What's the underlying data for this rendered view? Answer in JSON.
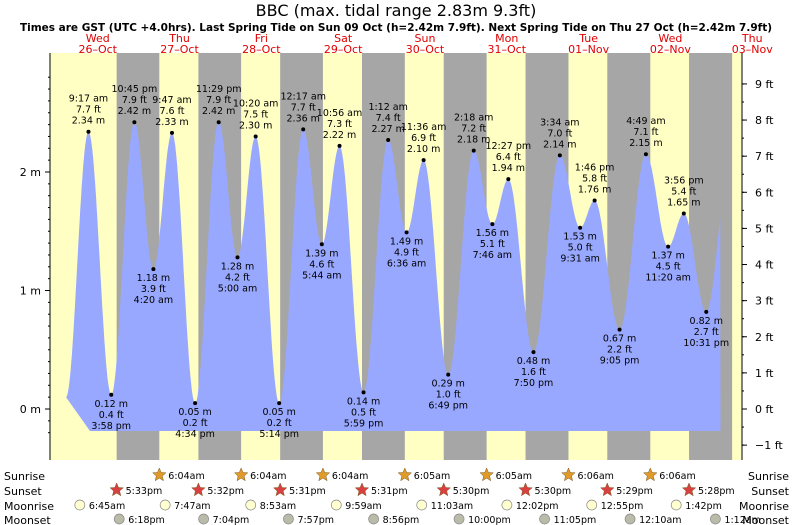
{
  "title": "BBC (max. tidal range 2.83m 9.3ft)",
  "subtitle": "Times are GST (UTC +4.0hrs). Last Spring Tide on Sun 09 Oct (h=2.42m 7.9ft). Next Spring Tide on Thu 27 Oct (h=2.42m 7.9ft)",
  "colors": {
    "day": "#ffffc4",
    "night": "#a6a6a6",
    "water": "#99a8ff",
    "day_label": "#e00000",
    "sun": "#e09a2a",
    "sunset": "#d94040",
    "moon": "#ffffd0",
    "moonset": "#bbbbaa"
  },
  "chart_data": {
    "type": "area",
    "title": "BBC (max. tidal range 2.83m 9.3ft)",
    "x_axis": {
      "type": "time",
      "start": "2022-10-25 22:00",
      "end": "2022-11-03 09:00"
    },
    "days": [
      {
        "weekday": "Wed",
        "date": "26–Oct"
      },
      {
        "weekday": "Thu",
        "date": "27–Oct"
      },
      {
        "weekday": "Fri",
        "date": "28–Oct"
      },
      {
        "weekday": "Sat",
        "date": "29–Oct"
      },
      {
        "weekday": "Sun",
        "date": "30–Oct"
      },
      {
        "weekday": "Mon",
        "date": "31–Oct"
      },
      {
        "weekday": "Tue",
        "date": "01–Nov"
      },
      {
        "weekday": "Wed",
        "date": "02–Nov"
      },
      {
        "weekday": "Thu",
        "date": "03–Nov"
      }
    ],
    "y_left": {
      "unit": "m",
      "range": [
        -0.3,
        3.0
      ],
      "ticks": [
        "0 m",
        "1 m",
        "2 m"
      ],
      "tick_values": [
        0,
        1,
        2
      ]
    },
    "y_right": {
      "unit": "ft",
      "ticks": [
        "−1 ft",
        "0 ft",
        "1 ft",
        "2 ft",
        "3 ft",
        "4 ft",
        "5 ft",
        "6 ft",
        "7 ft",
        "8 ft",
        "9 ft"
      ],
      "tick_values": [
        -1,
        0,
        1,
        2,
        3,
        4,
        5,
        6,
        7,
        8,
        9
      ]
    },
    "tides": [
      {
        "t": "2022-10-26 09:17",
        "time": "9:17 am",
        "h": 2.34,
        "m": "2.34 m",
        "ft": "7.7 ft",
        "type": "high"
      },
      {
        "t": "2022-10-26 15:58",
        "time": "3:58 pm",
        "h": 0.12,
        "m": "0.12 m",
        "ft": "0.4 ft",
        "type": "low"
      },
      {
        "t": "2022-10-26 22:45",
        "time": "10:45 pm",
        "h": 2.42,
        "m": "2.42 m",
        "ft": "7.9 ft",
        "type": "high"
      },
      {
        "t": "2022-10-27 04:20",
        "time": "4:20 am",
        "h": 1.18,
        "m": "1.18 m",
        "ft": "3.9 ft",
        "type": "low"
      },
      {
        "t": "2022-10-27 09:47",
        "time": "9:47 am",
        "h": 2.33,
        "m": "2.33 m",
        "ft": "7.6 ft",
        "type": "high"
      },
      {
        "t": "2022-10-27 16:34",
        "time": "4:34 pm",
        "h": 0.05,
        "m": "0.05 m",
        "ft": "0.2 ft",
        "type": "low"
      },
      {
        "t": "2022-10-27 23:29",
        "time": "11:29 pm",
        "h": 2.42,
        "m": "2.42 m",
        "ft": "7.9 ft",
        "type": "high"
      },
      {
        "t": "2022-10-28 05:00",
        "time": "5:00 am",
        "h": 1.28,
        "m": "1.28 m",
        "ft": "4.2 ft",
        "type": "low"
      },
      {
        "t": "2022-10-28 10:20",
        "time": "10:20 am",
        "h": 2.3,
        "m": "2.30 m",
        "ft": "7.5 ft",
        "type": "high"
      },
      {
        "t": "2022-10-28 17:14",
        "time": "5:14 pm",
        "h": 0.05,
        "m": "0.05 m",
        "ft": "0.2 ft",
        "type": "low"
      },
      {
        "t": "2022-10-29 00:17",
        "time": "12:17 am",
        "h": 2.36,
        "m": "2.36 m",
        "ft": "7.7 ft",
        "type": "high"
      },
      {
        "t": "2022-10-29 05:44",
        "time": "5:44 am",
        "h": 1.39,
        "m": "1.39 m",
        "ft": "4.6 ft",
        "type": "low"
      },
      {
        "t": "2022-10-29 10:56",
        "time": "10:56 am",
        "h": 2.22,
        "m": "2.22 m",
        "ft": "7.3 ft",
        "type": "high"
      },
      {
        "t": "2022-10-29 17:59",
        "time": "5:59 pm",
        "h": 0.14,
        "m": "0.14 m",
        "ft": "0.5 ft",
        "type": "low"
      },
      {
        "t": "2022-10-30 01:12",
        "time": "1:12 am",
        "h": 2.27,
        "m": "2.27 m",
        "ft": "7.4 ft",
        "type": "high"
      },
      {
        "t": "2022-10-30 06:36",
        "time": "6:36 am",
        "h": 1.49,
        "m": "1.49 m",
        "ft": "4.9 ft",
        "type": "low"
      },
      {
        "t": "2022-10-30 11:36",
        "time": "11:36 am",
        "h": 2.1,
        "m": "2.10 m",
        "ft": "6.9 ft",
        "type": "high"
      },
      {
        "t": "2022-10-30 18:49",
        "time": "6:49 pm",
        "h": 0.29,
        "m": "0.29 m",
        "ft": "1.0 ft",
        "type": "low"
      },
      {
        "t": "2022-10-31 02:18",
        "time": "2:18 am",
        "h": 2.18,
        "m": "2.18 m",
        "ft": "7.2 ft",
        "type": "high"
      },
      {
        "t": "2022-10-31 07:46",
        "time": "7:46 am",
        "h": 1.56,
        "m": "1.56 m",
        "ft": "5.1 ft",
        "type": "low"
      },
      {
        "t": "2022-10-31 12:27",
        "time": "12:27 pm",
        "h": 1.94,
        "m": "1.94 m",
        "ft": "6.4 ft",
        "type": "high"
      },
      {
        "t": "2022-10-31 19:50",
        "time": "7:50 pm",
        "h": 0.48,
        "m": "0.48 m",
        "ft": "1.6 ft",
        "type": "low"
      },
      {
        "t": "2022-11-01 03:34",
        "time": "3:34 am",
        "h": 2.14,
        "m": "2.14 m",
        "ft": "7.0 ft",
        "type": "high"
      },
      {
        "t": "2022-11-01 09:31",
        "time": "9:31 am",
        "h": 1.53,
        "m": "1.53 m",
        "ft": "5.0 ft",
        "type": "low"
      },
      {
        "t": "2022-11-01 13:46",
        "time": "1:46 pm",
        "h": 1.76,
        "m": "1.76 m",
        "ft": "5.8 ft",
        "type": "high"
      },
      {
        "t": "2022-11-01 21:05",
        "time": "9:05 pm",
        "h": 0.67,
        "m": "0.67 m",
        "ft": "2.2 ft",
        "type": "low"
      },
      {
        "t": "2022-11-02 04:49",
        "time": "4:49 am",
        "h": 2.15,
        "m": "2.15 m",
        "ft": "7.1 ft",
        "type": "high"
      },
      {
        "t": "2022-11-02 11:20",
        "time": "11:20 am",
        "h": 1.37,
        "m": "1.37 m",
        "ft": "4.5 ft",
        "type": "low"
      },
      {
        "t": "2022-11-02 15:56",
        "time": "3:56 pm",
        "h": 1.65,
        "m": "1.65 m",
        "ft": "5.4 ft",
        "type": "high"
      },
      {
        "t": "2022-11-02 22:31",
        "time": "10:31 pm",
        "h": 0.82,
        "m": "0.82 m",
        "ft": "2.7 ft",
        "type": "low"
      }
    ],
    "astro": {
      "labels": {
        "sunrise": "Sunrise",
        "sunset": "Sunset",
        "moonrise": "Moonrise",
        "moonset": "Moonset"
      },
      "sunrise": [
        {
          "t": "2022-10-27 06:04",
          "time": "6:04am"
        },
        {
          "t": "2022-10-28 06:04",
          "time": "6:04am"
        },
        {
          "t": "2022-10-29 06:04",
          "time": "6:04am"
        },
        {
          "t": "2022-10-30 06:05",
          "time": "6:05am"
        },
        {
          "t": "2022-10-31 06:05",
          "time": "6:05am"
        },
        {
          "t": "2022-11-01 06:06",
          "time": "6:06am"
        },
        {
          "t": "2022-11-02 06:06",
          "time": "6:06am"
        }
      ],
      "sunset": [
        {
          "t": "2022-10-26 17:33",
          "time": "5:33pm"
        },
        {
          "t": "2022-10-27 17:32",
          "time": "5:32pm"
        },
        {
          "t": "2022-10-28 17:31",
          "time": "5:31pm"
        },
        {
          "t": "2022-10-29 17:31",
          "time": "5:31pm"
        },
        {
          "t": "2022-10-30 17:30",
          "time": "5:30pm"
        },
        {
          "t": "2022-10-31 17:30",
          "time": "5:30pm"
        },
        {
          "t": "2022-11-01 17:29",
          "time": "5:29pm"
        },
        {
          "t": "2022-11-02 17:28",
          "time": "5:28pm"
        }
      ],
      "moonrise": [
        {
          "t": "2022-10-26 06:45",
          "time": "6:45am"
        },
        {
          "t": "2022-10-27 07:47",
          "time": "7:47am"
        },
        {
          "t": "2022-10-28 08:53",
          "time": "8:53am"
        },
        {
          "t": "2022-10-29 09:59",
          "time": "9:59am"
        },
        {
          "t": "2022-10-30 11:03",
          "time": "11:03am"
        },
        {
          "t": "2022-10-31 12:02",
          "time": "12:02pm"
        },
        {
          "t": "2022-11-01 12:55",
          "time": "12:55pm"
        },
        {
          "t": "2022-11-02 13:42",
          "time": "1:42pm"
        }
      ],
      "moonset": [
        {
          "t": "2022-10-26 18:18",
          "time": "6:18pm"
        },
        {
          "t": "2022-10-27 19:04",
          "time": "7:04pm"
        },
        {
          "t": "2022-10-28 19:57",
          "time": "7:57pm"
        },
        {
          "t": "2022-10-29 20:56",
          "time": "8:56pm"
        },
        {
          "t": "2022-10-30 22:00",
          "time": "10:00pm"
        },
        {
          "t": "2022-10-31 23:05",
          "time": "11:05pm"
        },
        {
          "t": "2022-11-02 00:10",
          "time": "12:10am"
        },
        {
          "t": "2022-11-03 01:12",
          "time": "1:12am"
        }
      ]
    }
  }
}
